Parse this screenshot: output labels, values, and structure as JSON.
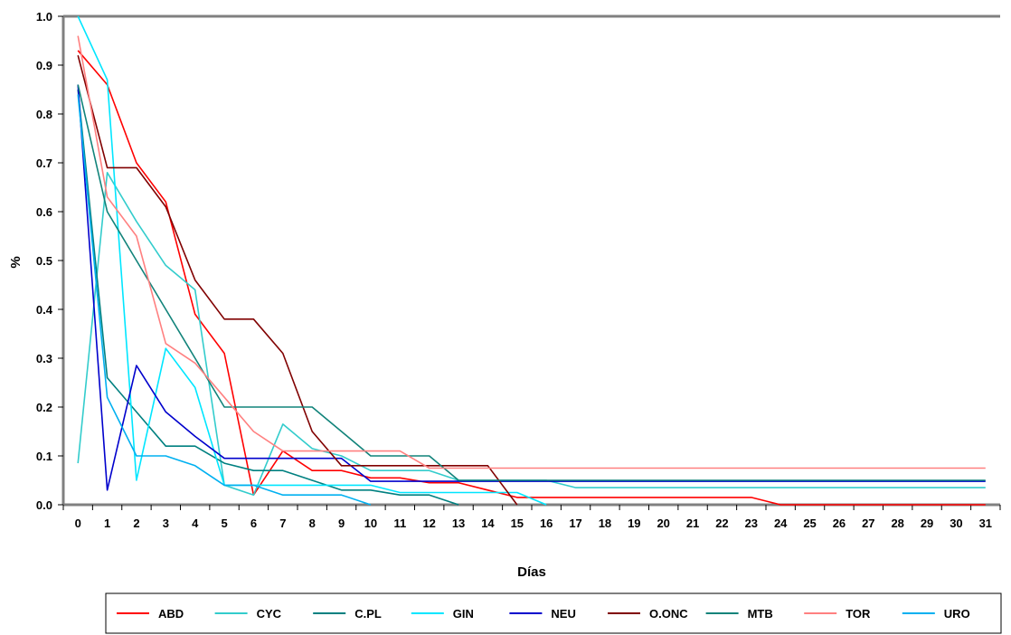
{
  "chart_data": {
    "type": "line",
    "title": "",
    "xlabel": "Días",
    "ylabel": "%",
    "x_categories": [
      "0",
      "1",
      "2",
      "3",
      "4",
      "5",
      "6",
      "7",
      "8",
      "9",
      "10",
      "11",
      "12",
      "13",
      "14",
      "15",
      "16",
      "17",
      "18",
      "19",
      "20",
      "21",
      "22",
      "23",
      "24",
      "25",
      "26",
      "27",
      "28",
      "29",
      "30",
      "31"
    ],
    "x_range": [
      0,
      32
    ],
    "ylim": [
      0,
      1.0
    ],
    "y_ticks": [
      "0.0",
      "0.1",
      "0.2",
      "0.3",
      "0.4",
      "0.5",
      "0.6",
      "0.7",
      "0.8",
      "0.9",
      "1.0"
    ],
    "grid": false,
    "legend_position": "bottom",
    "series": [
      {
        "name": "ABD",
        "color": "#ff0000",
        "x": [
          0.5,
          1.5,
          2.5,
          3.5,
          4.5,
          5.5,
          6.5,
          7.5,
          8.5,
          9.5,
          10.5,
          11.5,
          12.5,
          13.5,
          14.5,
          15.5,
          16.5,
          17.5,
          18.5,
          19.5,
          20.5,
          21.5,
          22.5,
          23.5,
          24.5,
          25.5,
          26.5,
          27.5,
          28.5,
          29.5,
          30.5,
          31.5
        ],
        "values": [
          0.93,
          0.86,
          0.7,
          0.62,
          0.39,
          0.31,
          0.02,
          0.11,
          0.07,
          0.07,
          0.055,
          0.055,
          0.045,
          0.045,
          0.03,
          0.015,
          0.015,
          0.015,
          0.015,
          0.015,
          0.015,
          0.015,
          0.015,
          0.015,
          0.0,
          0.0,
          0.0,
          0.0,
          0.0,
          0.0,
          0.0,
          0.0
        ]
      },
      {
        "name": "CYC",
        "color": "#33cccc",
        "x": [
          0.5,
          1.5,
          2.5,
          3.5,
          4.5,
          5.5,
          6.5,
          7.5,
          8.5,
          9.5,
          10.5,
          11.5,
          12.5,
          13.5,
          14.5,
          15.5,
          16.5,
          17.5,
          18.5,
          19.5,
          20.5,
          21.5,
          22.5,
          23.5,
          24.5,
          25.5,
          26.5,
          27.5,
          28.5,
          29.5,
          30.5,
          31.5
        ],
        "values": [
          0.085,
          0.68,
          0.58,
          0.49,
          0.44,
          0.04,
          0.02,
          0.165,
          0.115,
          0.1,
          0.07,
          0.07,
          0.07,
          0.05,
          0.05,
          0.05,
          0.05,
          0.035,
          0.035,
          0.035,
          0.035,
          0.035,
          0.035,
          0.035,
          0.035,
          0.035,
          0.035,
          0.035,
          0.035,
          0.035,
          0.035,
          0.035
        ]
      },
      {
        "name": "C.PL",
        "color": "#008080",
        "x": [
          0.5,
          1.5,
          2.5,
          3.5,
          4.5,
          5.5,
          6.5,
          7.5,
          8.5,
          9.5,
          10.5,
          11.5,
          12.5,
          13.5
        ],
        "values": [
          0.85,
          0.26,
          0.19,
          0.12,
          0.12,
          0.085,
          0.07,
          0.07,
          0.05,
          0.03,
          0.03,
          0.02,
          0.02,
          0.0
        ]
      },
      {
        "name": "GIN",
        "color": "#00e6ff",
        "x": [
          0.5,
          1.5,
          2.5,
          3.5,
          4.5,
          5.5,
          6.5,
          7.5,
          8.5,
          9.5,
          10.5,
          11.5,
          12.5,
          13.5,
          14.5,
          15.5,
          16.5
        ],
        "values": [
          1.0,
          0.87,
          0.05,
          0.32,
          0.24,
          0.04,
          0.04,
          0.04,
          0.04,
          0.04,
          0.04,
          0.025,
          0.025,
          0.025,
          0.025,
          0.025,
          0.0
        ]
      },
      {
        "name": "NEU",
        "color": "#0000cc",
        "x": [
          0.5,
          1.5,
          2.5,
          3.5,
          4.5,
          5.5,
          6.5,
          7.5,
          8.5,
          9.5,
          10.5,
          11.5,
          12.5,
          13.5,
          14.5,
          15.5,
          16.5,
          17.5,
          18.5,
          19.5,
          20.5,
          21.5,
          22.5,
          23.5,
          24.5,
          25.5,
          26.5,
          27.5,
          28.5,
          29.5,
          30.5,
          31.5
        ],
        "values": [
          0.86,
          0.03,
          0.285,
          0.19,
          0.14,
          0.095,
          0.095,
          0.095,
          0.095,
          0.095,
          0.048,
          0.048,
          0.048,
          0.048,
          0.048,
          0.048,
          0.048,
          0.048,
          0.048,
          0.048,
          0.048,
          0.048,
          0.048,
          0.048,
          0.048,
          0.048,
          0.048,
          0.048,
          0.048,
          0.048,
          0.048,
          0.048
        ]
      },
      {
        "name": "O.ONC",
        "color": "#800000",
        "x": [
          0.5,
          1.5,
          2.5,
          3.5,
          4.5,
          5.5,
          6.5,
          7.5,
          8.5,
          9.5,
          10.5,
          11.5,
          12.5,
          13.5,
          14.5,
          15.5
        ],
        "values": [
          0.92,
          0.69,
          0.69,
          0.61,
          0.46,
          0.38,
          0.38,
          0.31,
          0.15,
          0.08,
          0.08,
          0.08,
          0.08,
          0.08,
          0.08,
          0.0
        ]
      },
      {
        "name": "MTB",
        "color": "#11837a",
        "x": [
          0.5,
          1.5,
          2.5,
          3.5,
          4.5,
          5.5,
          6.5,
          7.5,
          8.5,
          9.5,
          10.5,
          11.5,
          12.5,
          13.5,
          14.5,
          15.5,
          16.5,
          17.5,
          18.5,
          19.5,
          20.5,
          21.5,
          22.5,
          23.5,
          24.5,
          25.5,
          26.5,
          27.5,
          28.5,
          29.5,
          30.5,
          31.5
        ],
        "values": [
          0.86,
          0.6,
          0.5,
          0.4,
          0.3,
          0.2,
          0.2,
          0.2,
          0.2,
          0.15,
          0.1,
          0.1,
          0.1,
          0.05,
          0.05,
          0.05,
          0.05,
          0.05,
          0.05,
          0.05,
          0.05,
          0.05,
          0.05,
          0.05,
          0.05,
          0.05,
          0.05,
          0.05,
          0.05,
          0.05,
          0.05,
          0.05
        ]
      },
      {
        "name": "TOR",
        "color": "#ff8080",
        "x": [
          0.5,
          1.5,
          2.5,
          3.5,
          4.5,
          5.5,
          6.5,
          7.5,
          8.5,
          9.5,
          10.5,
          11.5,
          12.5,
          13.5,
          14.5,
          15.5,
          16.5,
          17.5,
          18.5,
          19.5,
          20.5,
          21.5,
          22.5,
          23.5,
          24.5,
          25.5,
          26.5,
          27.5,
          28.5,
          29.5,
          30.5,
          31.5
        ],
        "values": [
          0.96,
          0.63,
          0.55,
          0.33,
          0.29,
          0.22,
          0.15,
          0.11,
          0.11,
          0.11,
          0.11,
          0.11,
          0.075,
          0.075,
          0.075,
          0.075,
          0.075,
          0.075,
          0.075,
          0.075,
          0.075,
          0.075,
          0.075,
          0.075,
          0.075,
          0.075,
          0.075,
          0.075,
          0.075,
          0.075,
          0.075,
          0.075
        ]
      },
      {
        "name": "URO",
        "color": "#00b0f0",
        "x": [
          0.5,
          1.5,
          2.5,
          3.5,
          4.5,
          5.5,
          6.5,
          7.5,
          8.5,
          9.5,
          10.5
        ],
        "values": [
          0.84,
          0.22,
          0.1,
          0.1,
          0.08,
          0.04,
          0.04,
          0.02,
          0.02,
          0.02,
          0.0
        ]
      }
    ]
  }
}
